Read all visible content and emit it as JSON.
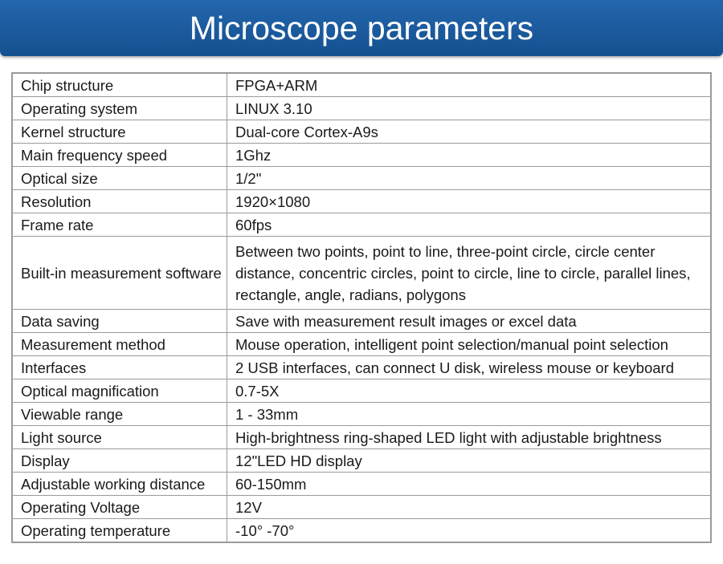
{
  "header": {
    "title": "Microscope parameters"
  },
  "table": {
    "rows": [
      [
        "Chip structure",
        "FPGA+ARM"
      ],
      [
        "Operating system",
        "LINUX 3.10"
      ],
      [
        "Kernel structure",
        "Dual-core Cortex-A9s"
      ],
      [
        "Main frequency speed",
        "1Ghz"
      ],
      [
        "Optical size",
        "1/2\""
      ],
      [
        "Resolution",
        "1920×1080"
      ],
      [
        "Frame rate",
        "60fps"
      ],
      [
        "Built-in measurement software",
        "Between two points, point to line, three-point circle, circle center distance, concentric circles, point to circle, line to circle, parallel lines, rectangle, angle, radians, polygons"
      ],
      [
        "Data saving",
        "Save with measurement result images or excel data"
      ],
      [
        "Measurement method",
        "Mouse operation, intelligent point selection/manual point selection"
      ],
      [
        "Interfaces",
        "2 USB interfaces, can connect U disk, wireless mouse or keyboard"
      ],
      [
        "Optical magnification",
        "0.7-5X"
      ],
      [
        "Viewable range",
        "1 - 33mm"
      ],
      [
        "Light source",
        "High-brightness ring-shaped LED light with adjustable brightness"
      ],
      [
        "Display",
        "12\"LED HD display"
      ],
      [
        "Adjustable working distance",
        "60-150mm"
      ],
      [
        "Operating Voltage",
        "12V"
      ],
      [
        "Operating temperature",
        "-10° -70°"
      ]
    ]
  }
}
